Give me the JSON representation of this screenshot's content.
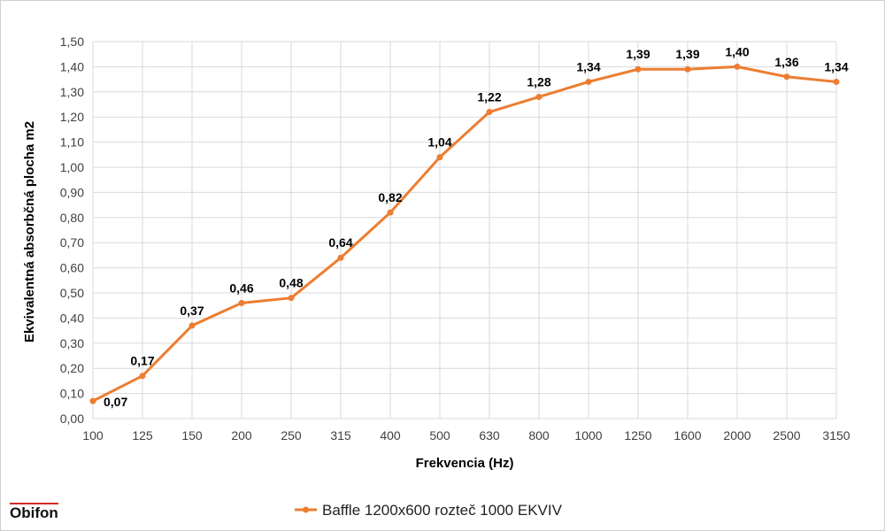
{
  "brand": {
    "name": "Obifon"
  },
  "chart_data": {
    "type": "line",
    "title": "",
    "xlabel": "Frekvencia (Hz)",
    "ylabel": "Ekvivalentná absorbčná plocha m2",
    "categories": [
      "100",
      "125",
      "150",
      "200",
      "250",
      "315",
      "400",
      "500",
      "630",
      "800",
      "1000",
      "1250",
      "1600",
      "2000",
      "2500",
      "3150"
    ],
    "series": [
      {
        "name": "Baffle 1200x600 rozteč 1000 EKVIV",
        "color": "#ed7d31",
        "values": [
          0.07,
          0.17,
          0.37,
          0.46,
          0.48,
          0.64,
          0.82,
          1.04,
          1.22,
          1.28,
          1.34,
          1.39,
          1.39,
          1.4,
          1.36,
          1.34
        ],
        "labels": [
          "0,07",
          "0,17",
          "0,37",
          "0,46",
          "0,48",
          "0,64",
          "0,82",
          "1,04",
          "1,22",
          "1,28",
          "1,34",
          "1,39",
          "1,39",
          "1,40",
          "1,36",
          "1,34"
        ]
      }
    ],
    "ylim": [
      0,
      1.5
    ],
    "ytick_labels": [
      "0,00",
      "0,10",
      "0,20",
      "0,30",
      "0,40",
      "0,50",
      "0,60",
      "0,70",
      "0,80",
      "0,90",
      "1,00",
      "1,10",
      "1,20",
      "1,30",
      "1,40",
      "1,50"
    ],
    "grid": true,
    "legend": "bottom-center"
  }
}
